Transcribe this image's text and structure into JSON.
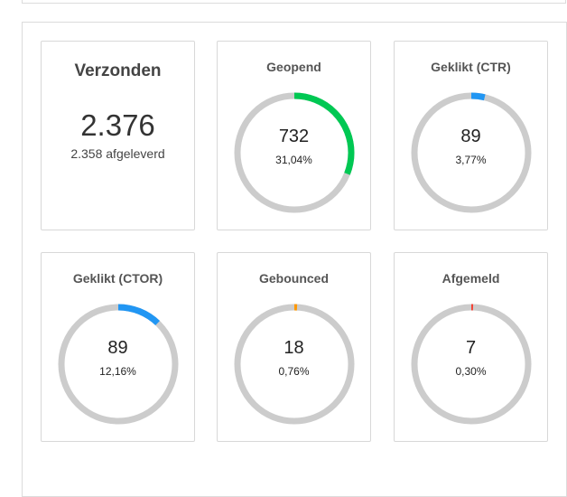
{
  "sent": {
    "title": "Verzonden",
    "count": "2.376",
    "delivered": "2.358 afgeleverd"
  },
  "metrics": [
    {
      "key": "opened",
      "title": "Geopend",
      "value": "732",
      "percent_label": "31,04%",
      "fraction": 0.3104,
      "color": "#00c853"
    },
    {
      "key": "ctr",
      "title": "Geklikt (CTR)",
      "value": "89",
      "percent_label": "3,77%",
      "fraction": 0.0377,
      "color": "#2196f3"
    },
    {
      "key": "ctor",
      "title": "Geklikt (CTOR)",
      "value": "89",
      "percent_label": "12,16%",
      "fraction": 0.1216,
      "color": "#2196f3"
    },
    {
      "key": "bounced",
      "title": "Gebounced",
      "value": "18",
      "percent_label": "0,76%",
      "fraction": 0.0076,
      "color": "#ff9800"
    },
    {
      "key": "unsubscribed",
      "title": "Afgemeld",
      "value": "7",
      "percent_label": "0,30%",
      "fraction": 0.003,
      "color": "#f44336"
    }
  ],
  "track_color": "#cccccc"
}
